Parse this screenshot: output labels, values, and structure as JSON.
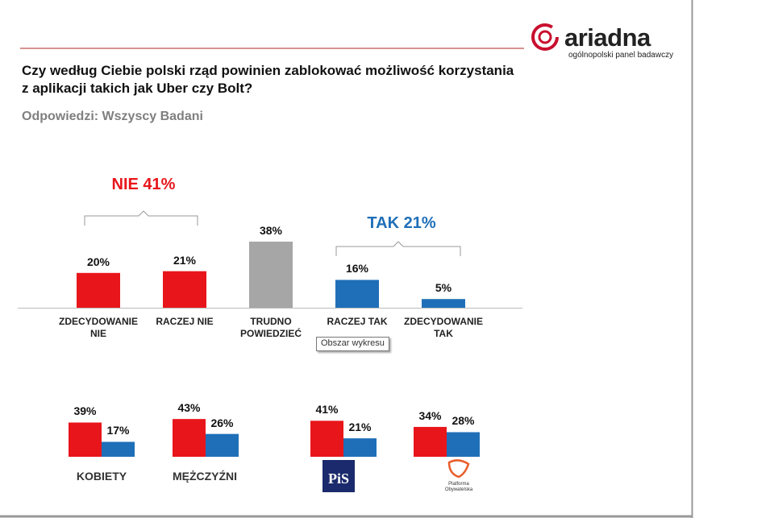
{
  "header": {
    "title": "Czy według Ciebie polski rząd powinien zablokować możliwość korzystania\nz aplikacji takich jak Uber czy Bolt?",
    "subtitle": "Odpowiedzi: Wszyscy Badani"
  },
  "logo": {
    "name": "ariadna",
    "tagline": "ogólnopolski panel badawczy"
  },
  "tooltip": "Obszar wykresu",
  "chart_data": [
    {
      "type": "bar",
      "categories": [
        "ZDECYDOWANIE\nNIE",
        "RACZEJ NIE",
        "TRUDNO\nPOWIEDZIEĆ",
        "RACZEJ TAK",
        "ZDECYDOWANIE\nTAK"
      ],
      "values": [
        20,
        21,
        38,
        16,
        5
      ],
      "value_labels": [
        "20%",
        "21%",
        "38%",
        "16%",
        "5%"
      ],
      "colors": [
        "#e8161b",
        "#e8161b",
        "#a6a6a6",
        "#1f6fb8",
        "#1f6fb8"
      ],
      "annotations": [
        {
          "text": "NIE 41%",
          "color": "#e8161b"
        },
        {
          "text": "TAK 21%",
          "color": "#1f6fb8"
        }
      ]
    },
    {
      "type": "grouped_bar",
      "categories": [
        "KOBIETY",
        "MĘŻCZYŹNI",
        "PiS",
        "Platforma\nObywatelska"
      ],
      "series": [
        {
          "color": "#e8161b",
          "values": [
            39,
            43,
            41,
            34
          ],
          "value_labels": [
            "39%",
            "43%",
            "41%",
            "34%"
          ]
        },
        {
          "color": "#1f6fb8",
          "values": [
            17,
            26,
            21,
            28
          ],
          "value_labels": [
            "17%",
            "26%",
            "21%",
            "28%"
          ]
        }
      ]
    }
  ]
}
